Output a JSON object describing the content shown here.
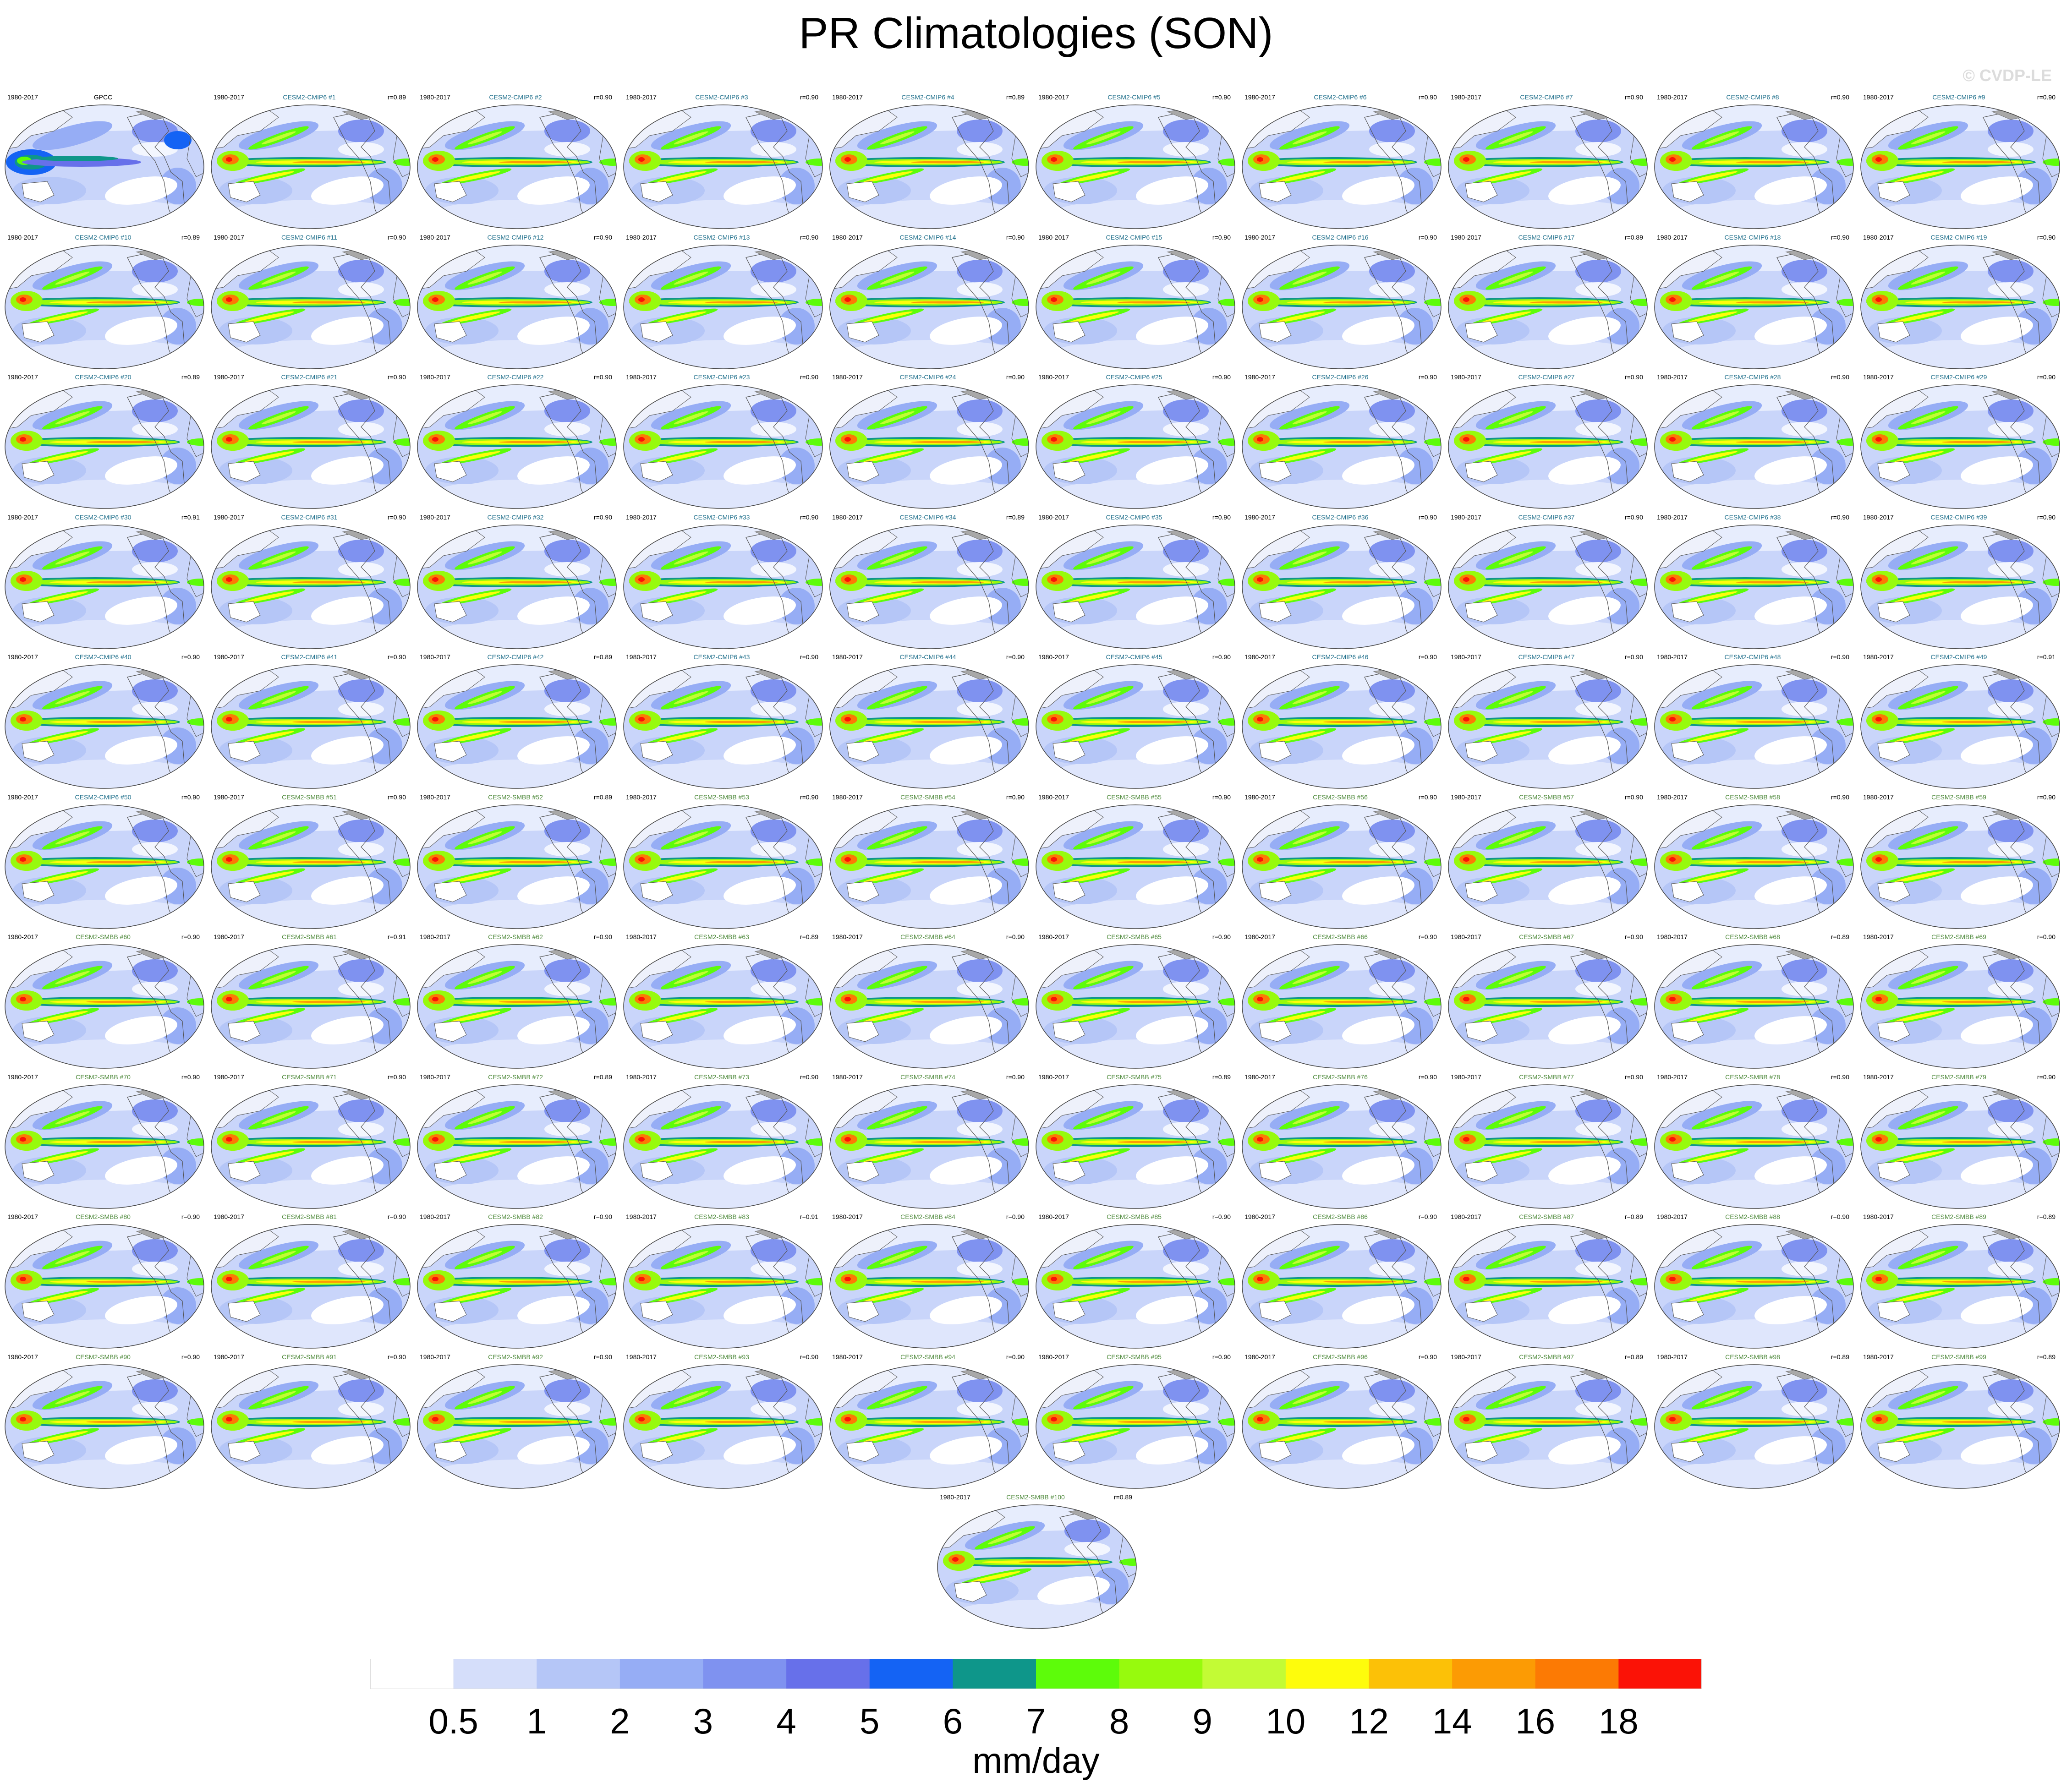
{
  "title": "PR Climatologies (SON)",
  "watermark": "© CVDP-LE",
  "chart_data": {
    "type": "heatmap",
    "variable": "precipitation",
    "season": "SON",
    "map_projection": "global map, Pacific-centered",
    "units": "mm/day",
    "colorbar": {
      "levels": [
        "0.5",
        "1",
        "2",
        "3",
        "4",
        "5",
        "6",
        "7",
        "8",
        "9",
        "10",
        "12",
        "14",
        "16",
        "18"
      ],
      "colors": [
        "#ffffff",
        "#d5defa",
        "#b5c6f7",
        "#96adf5",
        "#7f92f0",
        "#6770ea",
        "#1463f4",
        "#0e968a",
        "#5dfc0a",
        "#97fa0d",
        "#c3fb35",
        "#fefc0c",
        "#fcc107",
        "#fc9b04",
        "#fc7a04",
        "#fb1206"
      ]
    },
    "panels": [
      {
        "title": "GPCC",
        "period": "1980-2017",
        "r": "",
        "kind": "obs"
      },
      {
        "title": "CESM2-CMIP6 #1",
        "period": "1980-2017",
        "r": "r=0.89",
        "kind": "cmip6"
      },
      {
        "title": "CESM2-CMIP6 #2",
        "period": "1980-2017",
        "r": "r=0.90",
        "kind": "cmip6"
      },
      {
        "title": "CESM2-CMIP6 #3",
        "period": "1980-2017",
        "r": "r=0.90",
        "kind": "cmip6"
      },
      {
        "title": "CESM2-CMIP6 #4",
        "period": "1980-2017",
        "r": "r=0.89",
        "kind": "cmip6"
      },
      {
        "title": "CESM2-CMIP6 #5",
        "period": "1980-2017",
        "r": "r=0.90",
        "kind": "cmip6"
      },
      {
        "title": "CESM2-CMIP6 #6",
        "period": "1980-2017",
        "r": "r=0.90",
        "kind": "cmip6"
      },
      {
        "title": "CESM2-CMIP6 #7",
        "period": "1980-2017",
        "r": "r=0.90",
        "kind": "cmip6"
      },
      {
        "title": "CESM2-CMIP6 #8",
        "period": "1980-2017",
        "r": "r=0.90",
        "kind": "cmip6"
      },
      {
        "title": "CESM2-CMIP6 #9",
        "period": "1980-2017",
        "r": "r=0.90",
        "kind": "cmip6"
      },
      {
        "title": "CESM2-CMIP6 #10",
        "period": "1980-2017",
        "r": "r=0.89",
        "kind": "cmip6"
      },
      {
        "title": "CESM2-CMIP6 #11",
        "period": "1980-2017",
        "r": "r=0.90",
        "kind": "cmip6"
      },
      {
        "title": "CESM2-CMIP6 #12",
        "period": "1980-2017",
        "r": "r=0.90",
        "kind": "cmip6"
      },
      {
        "title": "CESM2-CMIP6 #13",
        "period": "1980-2017",
        "r": "r=0.90",
        "kind": "cmip6"
      },
      {
        "title": "CESM2-CMIP6 #14",
        "period": "1980-2017",
        "r": "r=0.90",
        "kind": "cmip6"
      },
      {
        "title": "CESM2-CMIP6 #15",
        "period": "1980-2017",
        "r": "r=0.90",
        "kind": "cmip6"
      },
      {
        "title": "CESM2-CMIP6 #16",
        "period": "1980-2017",
        "r": "r=0.90",
        "kind": "cmip6"
      },
      {
        "title": "CESM2-CMIP6 #17",
        "period": "1980-2017",
        "r": "r=0.89",
        "kind": "cmip6"
      },
      {
        "title": "CESM2-CMIP6 #18",
        "period": "1980-2017",
        "r": "r=0.90",
        "kind": "cmip6"
      },
      {
        "title": "CESM2-CMIP6 #19",
        "period": "1980-2017",
        "r": "r=0.90",
        "kind": "cmip6"
      },
      {
        "title": "CESM2-CMIP6 #20",
        "period": "1980-2017",
        "r": "r=0.89",
        "kind": "cmip6"
      },
      {
        "title": "CESM2-CMIP6 #21",
        "period": "1980-2017",
        "r": "r=0.90",
        "kind": "cmip6"
      },
      {
        "title": "CESM2-CMIP6 #22",
        "period": "1980-2017",
        "r": "r=0.90",
        "kind": "cmip6"
      },
      {
        "title": "CESM2-CMIP6 #23",
        "period": "1980-2017",
        "r": "r=0.90",
        "kind": "cmip6"
      },
      {
        "title": "CESM2-CMIP6 #24",
        "period": "1980-2017",
        "r": "r=0.90",
        "kind": "cmip6"
      },
      {
        "title": "CESM2-CMIP6 #25",
        "period": "1980-2017",
        "r": "r=0.90",
        "kind": "cmip6"
      },
      {
        "title": "CESM2-CMIP6 #26",
        "period": "1980-2017",
        "r": "r=0.90",
        "kind": "cmip6"
      },
      {
        "title": "CESM2-CMIP6 #27",
        "period": "1980-2017",
        "r": "r=0.90",
        "kind": "cmip6"
      },
      {
        "title": "CESM2-CMIP6 #28",
        "period": "1980-2017",
        "r": "r=0.90",
        "kind": "cmip6"
      },
      {
        "title": "CESM2-CMIP6 #29",
        "period": "1980-2017",
        "r": "r=0.90",
        "kind": "cmip6"
      },
      {
        "title": "CESM2-CMIP6 #30",
        "period": "1980-2017",
        "r": "r=0.91",
        "kind": "cmip6"
      },
      {
        "title": "CESM2-CMIP6 #31",
        "period": "1980-2017",
        "r": "r=0.90",
        "kind": "cmip6"
      },
      {
        "title": "CESM2-CMIP6 #32",
        "period": "1980-2017",
        "r": "r=0.90",
        "kind": "cmip6"
      },
      {
        "title": "CESM2-CMIP6 #33",
        "period": "1980-2017",
        "r": "r=0.90",
        "kind": "cmip6"
      },
      {
        "title": "CESM2-CMIP6 #34",
        "period": "1980-2017",
        "r": "r=0.89",
        "kind": "cmip6"
      },
      {
        "title": "CESM2-CMIP6 #35",
        "period": "1980-2017",
        "r": "r=0.90",
        "kind": "cmip6"
      },
      {
        "title": "CESM2-CMIP6 #36",
        "period": "1980-2017",
        "r": "r=0.90",
        "kind": "cmip6"
      },
      {
        "title": "CESM2-CMIP6 #37",
        "period": "1980-2017",
        "r": "r=0.90",
        "kind": "cmip6"
      },
      {
        "title": "CESM2-CMIP6 #38",
        "period": "1980-2017",
        "r": "r=0.90",
        "kind": "cmip6"
      },
      {
        "title": "CESM2-CMIP6 #39",
        "period": "1980-2017",
        "r": "r=0.90",
        "kind": "cmip6"
      },
      {
        "title": "CESM2-CMIP6 #40",
        "period": "1980-2017",
        "r": "r=0.90",
        "kind": "cmip6"
      },
      {
        "title": "CESM2-CMIP6 #41",
        "period": "1980-2017",
        "r": "r=0.90",
        "kind": "cmip6"
      },
      {
        "title": "CESM2-CMIP6 #42",
        "period": "1980-2017",
        "r": "r=0.89",
        "kind": "cmip6"
      },
      {
        "title": "CESM2-CMIP6 #43",
        "period": "1980-2017",
        "r": "r=0.90",
        "kind": "cmip6"
      },
      {
        "title": "CESM2-CMIP6 #44",
        "period": "1980-2017",
        "r": "r=0.90",
        "kind": "cmip6"
      },
      {
        "title": "CESM2-CMIP6 #45",
        "period": "1980-2017",
        "r": "r=0.90",
        "kind": "cmip6"
      },
      {
        "title": "CESM2-CMIP6 #46",
        "period": "1980-2017",
        "r": "r=0.90",
        "kind": "cmip6"
      },
      {
        "title": "CESM2-CMIP6 #47",
        "period": "1980-2017",
        "r": "r=0.90",
        "kind": "cmip6"
      },
      {
        "title": "CESM2-CMIP6 #48",
        "period": "1980-2017",
        "r": "r=0.90",
        "kind": "cmip6"
      },
      {
        "title": "CESM2-CMIP6 #49",
        "period": "1980-2017",
        "r": "r=0.91",
        "kind": "cmip6"
      },
      {
        "title": "CESM2-CMIP6 #50",
        "period": "1980-2017",
        "r": "r=0.90",
        "kind": "cmip6"
      },
      {
        "title": "CESM2-SMBB #51",
        "period": "1980-2017",
        "r": "r=0.90",
        "kind": "smbb"
      },
      {
        "title": "CESM2-SMBB #52",
        "period": "1980-2017",
        "r": "r=0.89",
        "kind": "smbb"
      },
      {
        "title": "CESM2-SMBB #53",
        "period": "1980-2017",
        "r": "r=0.90",
        "kind": "smbb"
      },
      {
        "title": "CESM2-SMBB #54",
        "period": "1980-2017",
        "r": "r=0.90",
        "kind": "smbb"
      },
      {
        "title": "CESM2-SMBB #55",
        "period": "1980-2017",
        "r": "r=0.90",
        "kind": "smbb"
      },
      {
        "title": "CESM2-SMBB #56",
        "period": "1980-2017",
        "r": "r=0.90",
        "kind": "smbb"
      },
      {
        "title": "CESM2-SMBB #57",
        "period": "1980-2017",
        "r": "r=0.90",
        "kind": "smbb"
      },
      {
        "title": "CESM2-SMBB #58",
        "period": "1980-2017",
        "r": "r=0.90",
        "kind": "smbb"
      },
      {
        "title": "CESM2-SMBB #59",
        "period": "1980-2017",
        "r": "r=0.90",
        "kind": "smbb"
      },
      {
        "title": "CESM2-SMBB #60",
        "period": "1980-2017",
        "r": "r=0.90",
        "kind": "smbb"
      },
      {
        "title": "CESM2-SMBB #61",
        "period": "1980-2017",
        "r": "r=0.91",
        "kind": "smbb"
      },
      {
        "title": "CESM2-SMBB #62",
        "period": "1980-2017",
        "r": "r=0.90",
        "kind": "smbb"
      },
      {
        "title": "CESM2-SMBB #63",
        "period": "1980-2017",
        "r": "r=0.89",
        "kind": "smbb"
      },
      {
        "title": "CESM2-SMBB #64",
        "period": "1980-2017",
        "r": "r=0.90",
        "kind": "smbb"
      },
      {
        "title": "CESM2-SMBB #65",
        "period": "1980-2017",
        "r": "r=0.90",
        "kind": "smbb"
      },
      {
        "title": "CESM2-SMBB #66",
        "period": "1980-2017",
        "r": "r=0.90",
        "kind": "smbb"
      },
      {
        "title": "CESM2-SMBB #67",
        "period": "1980-2017",
        "r": "r=0.90",
        "kind": "smbb"
      },
      {
        "title": "CESM2-SMBB #68",
        "period": "1980-2017",
        "r": "r=0.89",
        "kind": "smbb"
      },
      {
        "title": "CESM2-SMBB #69",
        "period": "1980-2017",
        "r": "r=0.90",
        "kind": "smbb"
      },
      {
        "title": "CESM2-SMBB #70",
        "period": "1980-2017",
        "r": "r=0.90",
        "kind": "smbb"
      },
      {
        "title": "CESM2-SMBB #71",
        "period": "1980-2017",
        "r": "r=0.90",
        "kind": "smbb"
      },
      {
        "title": "CESM2-SMBB #72",
        "period": "1980-2017",
        "r": "r=0.89",
        "kind": "smbb"
      },
      {
        "title": "CESM2-SMBB #73",
        "period": "1980-2017",
        "r": "r=0.90",
        "kind": "smbb"
      },
      {
        "title": "CESM2-SMBB #74",
        "period": "1980-2017",
        "r": "r=0.90",
        "kind": "smbb"
      },
      {
        "title": "CESM2-SMBB #75",
        "period": "1980-2017",
        "r": "r=0.89",
        "kind": "smbb"
      },
      {
        "title": "CESM2-SMBB #76",
        "period": "1980-2017",
        "r": "r=0.90",
        "kind": "smbb"
      },
      {
        "title": "CESM2-SMBB #77",
        "period": "1980-2017",
        "r": "r=0.90",
        "kind": "smbb"
      },
      {
        "title": "CESM2-SMBB #78",
        "period": "1980-2017",
        "r": "r=0.90",
        "kind": "smbb"
      },
      {
        "title": "CESM2-SMBB #79",
        "period": "1980-2017",
        "r": "r=0.90",
        "kind": "smbb"
      },
      {
        "title": "CESM2-SMBB #80",
        "period": "1980-2017",
        "r": "r=0.90",
        "kind": "smbb"
      },
      {
        "title": "CESM2-SMBB #81",
        "period": "1980-2017",
        "r": "r=0.90",
        "kind": "smbb"
      },
      {
        "title": "CESM2-SMBB #82",
        "period": "1980-2017",
        "r": "r=0.90",
        "kind": "smbb"
      },
      {
        "title": "CESM2-SMBB #83",
        "period": "1980-2017",
        "r": "r=0.91",
        "kind": "smbb"
      },
      {
        "title": "CESM2-SMBB #84",
        "period": "1980-2017",
        "r": "r=0.90",
        "kind": "smbb"
      },
      {
        "title": "CESM2-SMBB #85",
        "period": "1980-2017",
        "r": "r=0.90",
        "kind": "smbb"
      },
      {
        "title": "CESM2-SMBB #86",
        "period": "1980-2017",
        "r": "r=0.90",
        "kind": "smbb"
      },
      {
        "title": "CESM2-SMBB #87",
        "period": "1980-2017",
        "r": "r=0.89",
        "kind": "smbb"
      },
      {
        "title": "CESM2-SMBB #88",
        "period": "1980-2017",
        "r": "r=0.90",
        "kind": "smbb"
      },
      {
        "title": "CESM2-SMBB #89",
        "period": "1980-2017",
        "r": "r=0.89",
        "kind": "smbb"
      },
      {
        "title": "CESM2-SMBB #90",
        "period": "1980-2017",
        "r": "r=0.90",
        "kind": "smbb"
      },
      {
        "title": "CESM2-SMBB #91",
        "period": "1980-2017",
        "r": "r=0.90",
        "kind": "smbb"
      },
      {
        "title": "CESM2-SMBB #92",
        "period": "1980-2017",
        "r": "r=0.90",
        "kind": "smbb"
      },
      {
        "title": "CESM2-SMBB #93",
        "period": "1980-2017",
        "r": "r=0.90",
        "kind": "smbb"
      },
      {
        "title": "CESM2-SMBB #94",
        "period": "1980-2017",
        "r": "r=0.90",
        "kind": "smbb"
      },
      {
        "title": "CESM2-SMBB #95",
        "period": "1980-2017",
        "r": "r=0.90",
        "kind": "smbb"
      },
      {
        "title": "CESM2-SMBB #96",
        "period": "1980-2017",
        "r": "r=0.90",
        "kind": "smbb"
      },
      {
        "title": "CESM2-SMBB #97",
        "period": "1980-2017",
        "r": "r=0.89",
        "kind": "smbb"
      },
      {
        "title": "CESM2-SMBB #98",
        "period": "1980-2017",
        "r": "r=0.89",
        "kind": "smbb"
      },
      {
        "title": "CESM2-SMBB #99",
        "period": "1980-2017",
        "r": "r=0.89",
        "kind": "smbb"
      },
      {
        "title": "CESM2-SMBB #100",
        "period": "1980-2017",
        "r": "r=0.89",
        "kind": "smbb"
      }
    ]
  },
  "colors": {
    "obs_title": "#000000",
    "cmip6_title": "#1f6f8b",
    "smbb_title": "#4f8a3c",
    "coast": "#555555",
    "land": "#a8a8a8"
  }
}
